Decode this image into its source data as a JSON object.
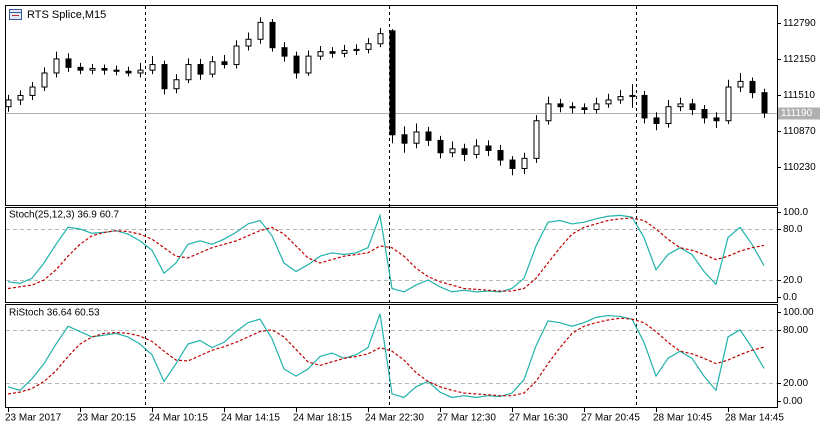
{
  "chart_data": [
    {
      "type": "candlestick",
      "title": "RTS Splice,M15",
      "categories": [
        "23 Mar 2017",
        null,
        null,
        null,
        null,
        null,
        "23 Mar 20:15",
        null,
        null,
        null,
        null,
        null,
        "24 Mar 10:15",
        null,
        null,
        null,
        null,
        null,
        "24 Mar 14:15",
        null,
        null,
        null,
        null,
        null,
        "24 Mar 18:15",
        null,
        null,
        null,
        null,
        null,
        "24 Mar 22:30",
        null,
        null,
        null,
        null,
        null,
        "27 Mar 12:30",
        null,
        null,
        null,
        null,
        null,
        "27 Mar 16:30",
        null,
        null,
        null,
        null,
        null,
        "27 Mar 20:45",
        null,
        null,
        null,
        null,
        null,
        "28 Mar 10:45",
        null,
        null,
        null,
        null,
        null,
        "28 Mar 14:45",
        null,
        null,
        null
      ],
      "open": [
        111300,
        111420,
        111500,
        111650,
        111900,
        112150,
        112000,
        111950,
        111980,
        111950,
        111930,
        111900,
        111950,
        112050,
        111620,
        111780,
        112050,
        111880,
        112100,
        112050,
        112380,
        112500,
        112800,
        112350,
        112200,
        111900,
        112200,
        112280,
        112250,
        112300,
        112320,
        112420,
        112650,
        110800,
        110650,
        110850,
        110700,
        110480,
        110550,
        110450,
        110600,
        110520,
        110350,
        110200,
        110380,
        111050,
        111350,
        111300,
        111280,
        111250,
        111350,
        111420,
        111480,
        111500,
        111100,
        111000,
        111300,
        111350,
        111250,
        111100,
        111050,
        111650,
        111750,
        111550
      ],
      "high": [
        111510,
        111590,
        111740,
        112000,
        112280,
        112250,
        112080,
        112060,
        112050,
        112030,
        112010,
        112080,
        112200,
        112120,
        111880,
        112160,
        112150,
        112200,
        112220,
        112480,
        112620,
        112890,
        112860,
        112450,
        112280,
        112300,
        112380,
        112360,
        112400,
        112410,
        112520,
        112700,
        112680,
        110950,
        111000,
        110940,
        110780,
        110680,
        110640,
        110720,
        110700,
        110620,
        110420,
        110480,
        111150,
        111480,
        111440,
        111380,
        111360,
        111460,
        111530,
        111600,
        111700,
        111580,
        111200,
        111420,
        111460,
        111440,
        111330,
        111200,
        111780,
        111900,
        111820,
        111620
      ],
      "low": [
        111210,
        111330,
        111420,
        111580,
        111820,
        111920,
        111880,
        111880,
        111870,
        111860,
        111840,
        111820,
        111880,
        111520,
        111540,
        111720,
        111780,
        111820,
        111980,
        111980,
        112300,
        112420,
        112280,
        112100,
        111800,
        111850,
        112130,
        112170,
        112180,
        112220,
        112250,
        112360,
        110650,
        110480,
        110560,
        110600,
        110380,
        110400,
        110330,
        110380,
        110420,
        110250,
        110080,
        110100,
        110300,
        110980,
        111200,
        111180,
        111170,
        111180,
        111280,
        111350,
        111280,
        111000,
        110880,
        110930,
        111220,
        111150,
        111000,
        110920,
        110990,
        111560,
        111450,
        111100
      ],
      "close": [
        111420,
        111500,
        111650,
        111900,
        112150,
        112000,
        111950,
        111980,
        111950,
        111930,
        111900,
        111950,
        112050,
        111620,
        111780,
        112050,
        111880,
        112100,
        112050,
        112380,
        112500,
        112800,
        112350,
        112200,
        111900,
        112200,
        112280,
        112250,
        112300,
        112320,
        112420,
        112600,
        110800,
        110650,
        110850,
        110700,
        110480,
        110550,
        110450,
        110600,
        110520,
        110350,
        110200,
        110380,
        111050,
        111350,
        111300,
        111280,
        111250,
        111350,
        111420,
        111480,
        111500,
        111100,
        111000,
        111300,
        111350,
        111250,
        111100,
        111050,
        111650,
        111750,
        111550,
        111190
      ],
      "ylim": [
        109550,
        113110
      ],
      "yticks": [
        110230,
        110870,
        111510,
        112150,
        112790
      ],
      "current_price": 111190,
      "up_color": "#ffffff",
      "down_color": "#000000",
      "line_color": "#000000"
    },
    {
      "type": "line",
      "title": "Stoch(25,12,3) 36.9 60.7",
      "ylim": [
        -5.9,
        105.9
      ],
      "yticks": [
        {
          "value": 0,
          "label": "0.0"
        },
        {
          "value": 20,
          "label": "20.0"
        },
        {
          "value": 80,
          "label": "80.0"
        },
        {
          "value": 100,
          "label": "100.0"
        }
      ],
      "levels": [
        20,
        80
      ],
      "series": [
        {
          "color": "#20b2aa",
          "values": [
            18,
            16,
            22,
            40,
            62,
            82,
            80,
            75,
            76,
            78,
            74,
            66,
            55,
            28,
            40,
            62,
            66,
            62,
            68,
            76,
            86,
            90,
            72,
            40,
            30,
            38,
            48,
            52,
            50,
            52,
            58,
            96,
            10,
            6,
            14,
            20,
            12,
            6,
            8,
            6,
            7,
            6,
            10,
            22,
            60,
            88,
            90,
            86,
            88,
            92,
            95,
            96,
            94,
            70,
            32,
            50,
            58,
            50,
            30,
            15,
            70,
            82,
            62,
            36.9
          ]
        },
        {
          "color": "#c00000",
          "dashed": true,
          "values": [
            10,
            12,
            14,
            20,
            32,
            48,
            62,
            72,
            76,
            78,
            77,
            74,
            68,
            58,
            48,
            46,
            52,
            58,
            62,
            66,
            72,
            78,
            82,
            74,
            60,
            46,
            40,
            44,
            48,
            50,
            52,
            60,
            58,
            48,
            34,
            24,
            18,
            14,
            10,
            9,
            8,
            7,
            7,
            10,
            22,
            40,
            58,
            74,
            82,
            86,
            90,
            92,
            93,
            90,
            80,
            68,
            58,
            55,
            50,
            44,
            48,
            54,
            58,
            60.7
          ]
        }
      ]
    },
    {
      "type": "line",
      "title": "RiStoch 36.64 60.53",
      "ylim": [
        -6.7,
        109
      ],
      "yticks": [
        {
          "value": 0,
          "label": "0.00"
        },
        {
          "value": 20,
          "label": "20.00"
        },
        {
          "value": 80,
          "label": "80.00"
        },
        {
          "value": 100,
          "label": "100.00"
        }
      ],
      "levels": [
        20,
        80
      ],
      "series": [
        {
          "color": "#20b2aa",
          "values": [
            16,
            12,
            25,
            42,
            64,
            84,
            78,
            72,
            74,
            76,
            72,
            64,
            52,
            22,
            42,
            64,
            68,
            60,
            66,
            78,
            88,
            92,
            70,
            36,
            28,
            36,
            50,
            54,
            48,
            52,
            60,
            98,
            8,
            4,
            16,
            22,
            10,
            4,
            6,
            4,
            6,
            5,
            9,
            24,
            62,
            90,
            88,
            84,
            88,
            94,
            96,
            95,
            92,
            66,
            28,
            48,
            56,
            48,
            28,
            12,
            72,
            80,
            60,
            36.64
          ]
        },
        {
          "color": "#c00000",
          "dashed": true,
          "values": [
            8,
            10,
            14,
            22,
            34,
            50,
            64,
            72,
            76,
            77,
            76,
            73,
            67,
            56,
            46,
            45,
            51,
            57,
            61,
            66,
            72,
            78,
            80,
            72,
            58,
            44,
            40,
            44,
            48,
            50,
            53,
            60,
            56,
            46,
            32,
            22,
            16,
            12,
            9,
            8,
            7,
            6,
            6,
            9,
            22,
            42,
            60,
            76,
            84,
            88,
            91,
            93,
            92,
            88,
            78,
            66,
            56,
            53,
            48,
            42,
            46,
            52,
            57,
            60.53
          ]
        }
      ]
    }
  ]
}
